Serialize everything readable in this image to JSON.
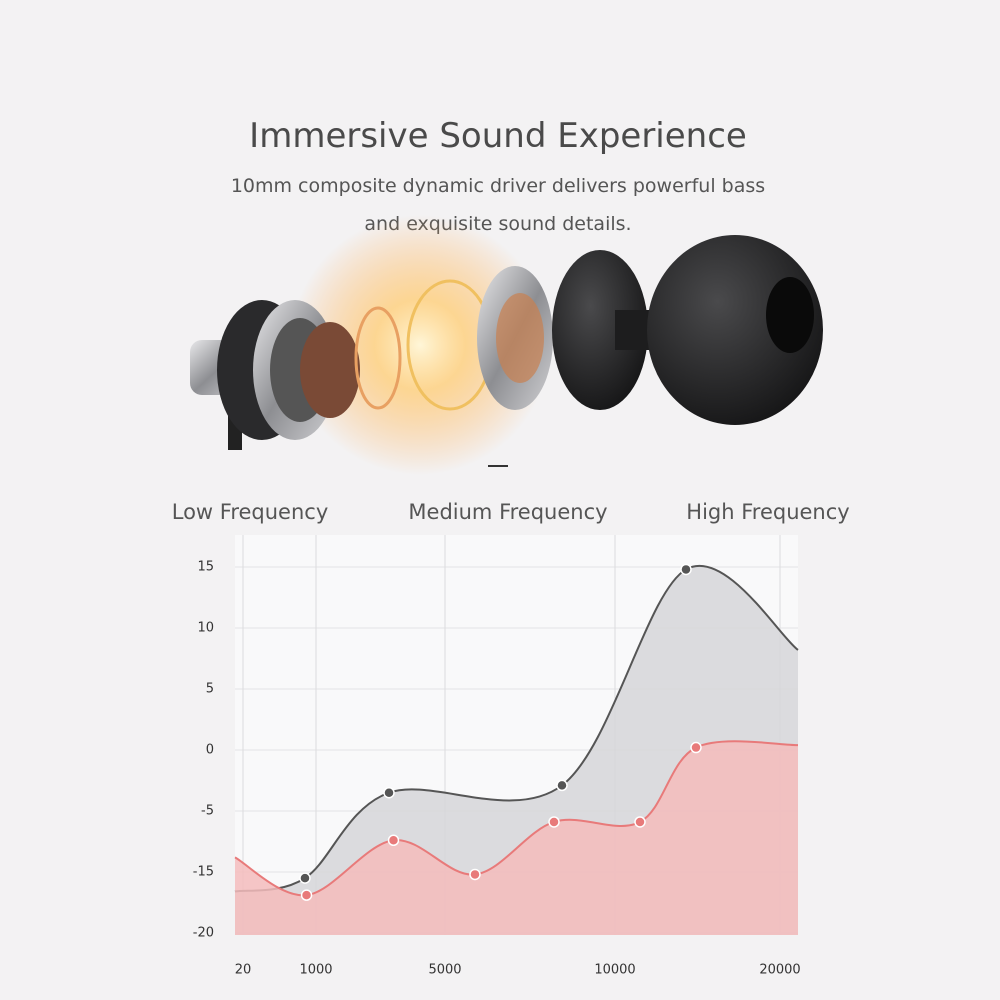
{
  "header": {
    "title": "Immersive Sound Experience",
    "subtitle": [
      "10mm composite dynamic driver delivers powerful bass",
      "and exquisite sound details."
    ]
  },
  "chart_data": {
    "type": "line",
    "annotations": [
      "Low Frequency",
      "Medium Frequency",
      "High Frequency"
    ],
    "xlim": [
      0,
      21000
    ],
    "xticks": [
      20,
      1000,
      5000,
      10000,
      20000
    ],
    "ylim": [
      -20,
      17.5
    ],
    "yticks": [
      15,
      10,
      5,
      0,
      -5,
      -15,
      -20
    ],
    "grid": true,
    "series": [
      {
        "color": "#555555",
        "fill": "#d6d6d8",
        "x": [
          0,
          852,
          3264,
          8441,
          14303,
          21000
        ],
        "values": [
          -16.6,
          -15.5,
          -3.5,
          -2.9,
          14.8,
          8.2
        ]
      },
      {
        "color": "#e87a7a",
        "fill": "#f4bcbc",
        "x": [
          0,
          873,
          3403,
          5882,
          8206,
          11515,
          14909,
          21000
        ],
        "values": [
          -12.6,
          -16.9,
          -9.8,
          -15.2,
          -6.8,
          -6.8,
          0.2,
          0.4
        ]
      }
    ]
  }
}
